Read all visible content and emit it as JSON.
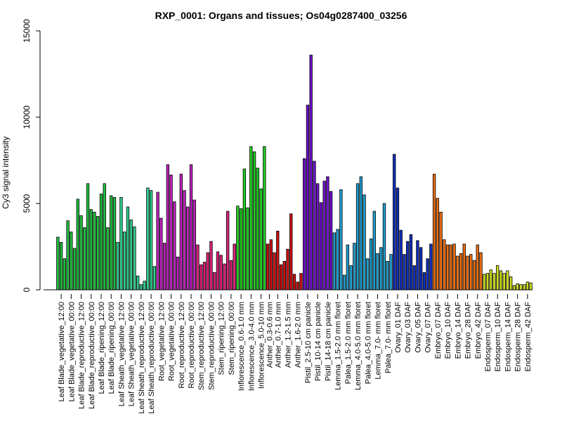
{
  "chart_data": {
    "type": "bar",
    "title": "RXP_0001: Organs and tissues; Os04g0287400_03256",
    "ylabel": "Cy3 signal intensity",
    "ylim": [
      0,
      15000
    ],
    "yticks": [
      0,
      5000,
      10000,
      15000
    ],
    "grid": false,
    "legend": "none",
    "groups": [
      {
        "label": "Leaf Blade_vegetative_12:00",
        "color": "#20C040",
        "values": [
          3050,
          2750,
          1800
        ]
      },
      {
        "label": "Leaf Blade_vegetative_00:00",
        "color": "#20C040",
        "values": [
          4000,
          3350,
          2400
        ]
      },
      {
        "label": "Leaf Blade_reproductive_12:00",
        "color": "#20C040",
        "values": [
          5250,
          4300,
          3600
        ]
      },
      {
        "label": "Leaf Blade_reproductive_00:00",
        "color": "#20C040",
        "values": [
          6150,
          4650,
          4500
        ]
      },
      {
        "label": "Leaf Blade_ripening_12:00",
        "color": "#20C040",
        "values": [
          4250,
          5550,
          6150
        ]
      },
      {
        "label": "Leaf Blade_ripening_00:00",
        "color": "#20C040",
        "values": [
          3600,
          5450,
          5350
        ]
      },
      {
        "label": "Leaf Sheath_vegetative_12:00",
        "color": "#30D090",
        "values": [
          2750,
          5350,
          3350
        ]
      },
      {
        "label": "Leaf Sheath_vegetative_00:00",
        "color": "#30D090",
        "values": [
          4800,
          4050,
          3650
        ]
      },
      {
        "label": "Leaf Sheath_reproductive_12:00",
        "color": "#30D090",
        "values": [
          800,
          300,
          500
        ]
      },
      {
        "label": "Leaf Sheath_reproductive_00:00",
        "color": "#30D090",
        "values": [
          5900,
          5750,
          1350
        ]
      },
      {
        "label": "Root_vegetative_12:00",
        "color": "#C020C0",
        "values": [
          5650,
          4150,
          2700
        ]
      },
      {
        "label": "Root_vegetative_00:00",
        "color": "#C020C0",
        "values": [
          7250,
          6650,
          5100
        ]
      },
      {
        "label": "Root_reproductive_12:00",
        "color": "#C020C0",
        "values": [
          1900,
          6700,
          5750
        ]
      },
      {
        "label": "Root_reproductive_00:00",
        "color": "#C020C0",
        "values": [
          4800,
          7250,
          5200
        ]
      },
      {
        "label": "Stem_reproductive_12:00",
        "color": "#E0207A",
        "values": [
          2600,
          1450,
          1600
        ]
      },
      {
        "label": "Stem_reproductive_00:00",
        "color": "#E0207A",
        "values": [
          2150,
          2800,
          1000
        ]
      },
      {
        "label": "Stem_ripening_12:00",
        "color": "#E0207A",
        "values": [
          2200,
          2000,
          1500
        ]
      },
      {
        "label": "Stem_ripening_00:00",
        "color": "#E0207A",
        "values": [
          4550,
          1700,
          2650
        ]
      },
      {
        "label": "Inflorescence_0.6-1.0 mm",
        "color": "#20D020",
        "values": [
          4850,
          4700,
          7000
        ]
      },
      {
        "label": "Inflorescence_3.0-4.0 mm",
        "color": "#20D020",
        "values": [
          4750,
          8300,
          8000
        ]
      },
      {
        "label": "Inflorescence_5.0-10 mm",
        "color": "#20D020",
        "values": [
          7050,
          5850,
          8300
        ]
      },
      {
        "label": "Anther_0.3-0.6 mm",
        "color": "#D01010",
        "values": [
          2650,
          2900
        ]
      },
      {
        "label": "Anther_0.7-1.0 mm",
        "color": "#D01010",
        "values": [
          2150,
          3400,
          1450
        ]
      },
      {
        "label": "Anther_1.2-1.5 mm",
        "color": "#D01010",
        "values": [
          1650,
          2350,
          4400
        ]
      },
      {
        "label": "Anther_1.6-2.0 mm",
        "color": "#D01010",
        "values": [
          900,
          450,
          950
        ]
      },
      {
        "label": "Pistil_2.5-10 cm panicle",
        "color": "#7010D0",
        "values": [
          7600,
          10700,
          13600
        ]
      },
      {
        "label": "Pistil_10-14 cm panicle",
        "color": "#7010D0",
        "values": [
          7450,
          6150,
          5050
        ]
      },
      {
        "label": "Pistil_14-18 cm panicle",
        "color": "#7010D0",
        "values": [
          6300,
          6550,
          5700
        ]
      },
      {
        "label": "Lemma_1.5-2.0 mm floret",
        "color": "#20A0D0",
        "values": [
          3300,
          3500,
          5800
        ]
      },
      {
        "label": "Palea_1.5-2.0 mm floret",
        "color": "#20A0D0",
        "values": [
          850,
          2600,
          1400
        ]
      },
      {
        "label": "Lemma_4.0-5.0 mm floret",
        "color": "#20A0D0",
        "values": [
          2700,
          6150,
          6550
        ]
      },
      {
        "label": "Palea_4.0-5.0 mm floret",
        "color": "#20A0D0",
        "values": [
          5500,
          1800,
          2950
        ]
      },
      {
        "label": "Lemma_7.0- mm floret",
        "color": "#20A0D0",
        "values": [
          4550,
          2100,
          2450
        ]
      },
      {
        "label": "Palea_7.0- mm floret",
        "color": "#20A0D0",
        "values": [
          5000,
          1650,
          2050
        ]
      },
      {
        "label": "Ovary_01 DAF",
        "color": "#1030C0",
        "values": [
          7850,
          5900,
          3450
        ]
      },
      {
        "label": "Ovary_03 DAF",
        "color": "#1030C0",
        "values": [
          2050,
          2800,
          3200
        ]
      },
      {
        "label": "Ovary_05 DAF",
        "color": "#1030C0",
        "values": [
          1400,
          2850,
          2450
        ]
      },
      {
        "label": "Ovary_07 DAF",
        "color": "#1030C0",
        "values": [
          1000,
          1800,
          2650
        ]
      },
      {
        "label": "Embryo_07 DAF",
        "color": "#F07010",
        "values": [
          6700,
          5300,
          4500
        ]
      },
      {
        "label": "Embryo_10 DAF",
        "color": "#F07010",
        "values": [
          2900,
          2600,
          2600
        ]
      },
      {
        "label": "Embryo_14 DAF",
        "color": "#F07010",
        "values": [
          2650,
          1950,
          2100
        ]
      },
      {
        "label": "Embryo_28 DAF",
        "color": "#F07010",
        "values": [
          2650,
          1950,
          2050
        ]
      },
      {
        "label": "Embryo_42 DAF",
        "color": "#F07010",
        "values": [
          1700,
          2600,
          2150
        ]
      },
      {
        "label": "Endosperm_07 DAF",
        "color": "#D0E020",
        "values": [
          900,
          950,
          1150
        ]
      },
      {
        "label": "Endosperm_10 DAF",
        "color": "#D0E020",
        "values": [
          950,
          1400,
          1100
        ]
      },
      {
        "label": "Endosperm_14 DAF",
        "color": "#D0E020",
        "values": [
          950,
          1100,
          750
        ]
      },
      {
        "label": "Endosperm_28 DAF",
        "color": "#D0E020",
        "values": [
          250,
          350,
          300
        ]
      },
      {
        "label": "Endosperm_42 DAF",
        "color": "#D0E020",
        "values": [
          300,
          450,
          400
        ]
      }
    ]
  }
}
